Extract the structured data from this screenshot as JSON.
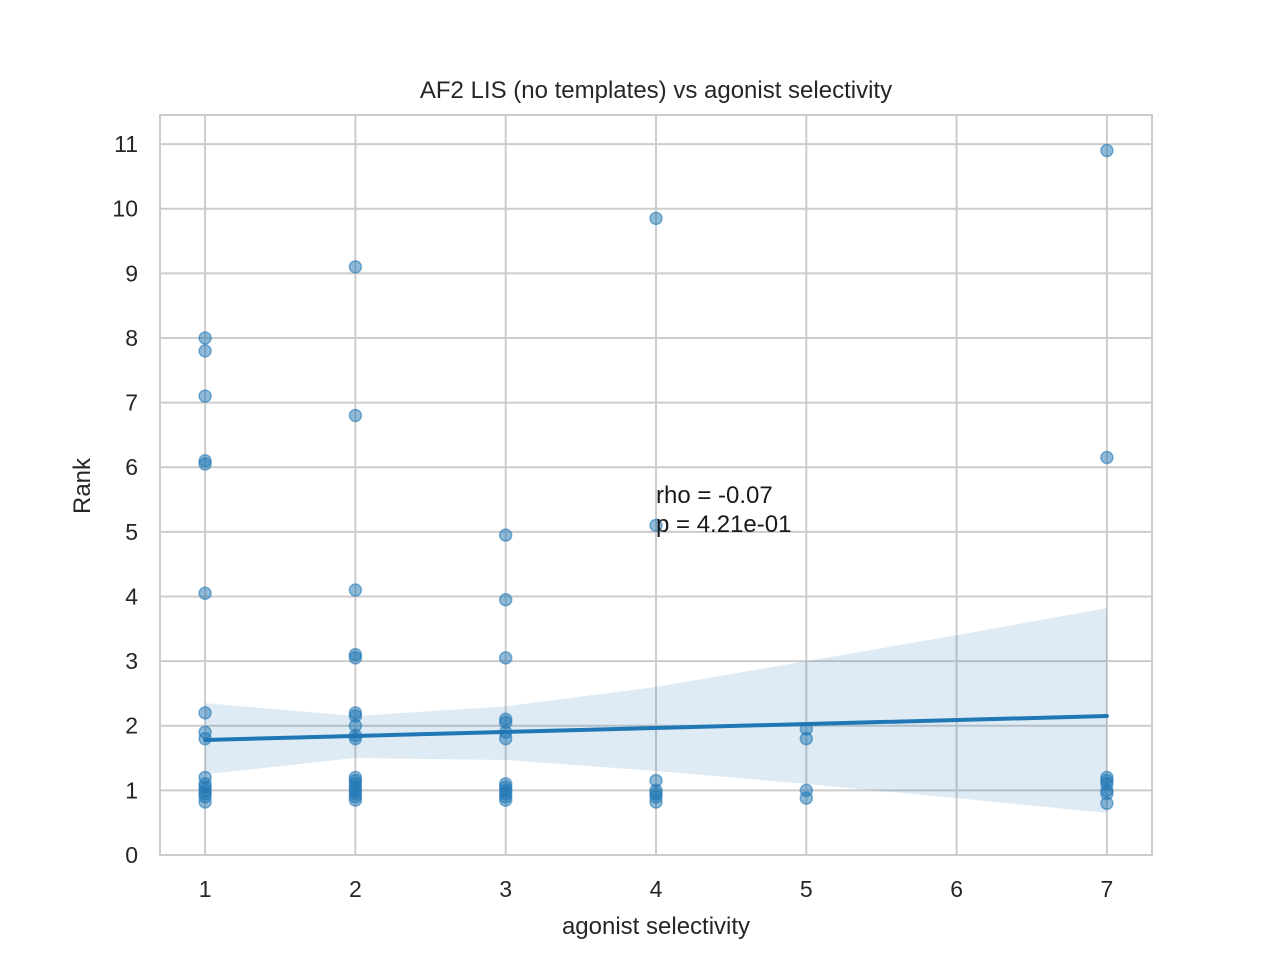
{
  "chart_data": {
    "type": "scatter",
    "title": "AF2 LIS (no templates) vs agonist selectivity",
    "xlabel": "agonist selectivity",
    "ylabel": "Rank",
    "xlim": [
      0.7,
      7.3
    ],
    "ylim": [
      0,
      11.45
    ],
    "x_ticks": [
      1,
      2,
      3,
      4,
      5,
      6,
      7
    ],
    "y_ticks": [
      0,
      1,
      2,
      3,
      4,
      5,
      6,
      7,
      8,
      9,
      10,
      11
    ],
    "grid": true,
    "point_color": "#1f77b4",
    "points": [
      {
        "x": 1,
        "y": 8.0
      },
      {
        "x": 1,
        "y": 7.8
      },
      {
        "x": 1,
        "y": 7.1
      },
      {
        "x": 1,
        "y": 6.1
      },
      {
        "x": 1,
        "y": 6.05
      },
      {
        "x": 1,
        "y": 4.05
      },
      {
        "x": 1,
        "y": 2.2
      },
      {
        "x": 1,
        "y": 1.9
      },
      {
        "x": 1,
        "y": 1.8
      },
      {
        "x": 1,
        "y": 1.2
      },
      {
        "x": 1,
        "y": 1.1
      },
      {
        "x": 1,
        "y": 1.05
      },
      {
        "x": 1,
        "y": 1.0
      },
      {
        "x": 1,
        "y": 0.95
      },
      {
        "x": 1,
        "y": 0.9
      },
      {
        "x": 1,
        "y": 0.82
      },
      {
        "x": 2,
        "y": 9.1
      },
      {
        "x": 2,
        "y": 6.8
      },
      {
        "x": 2,
        "y": 4.1
      },
      {
        "x": 2,
        "y": 3.1
      },
      {
        "x": 2,
        "y": 3.05
      },
      {
        "x": 2,
        "y": 2.2
      },
      {
        "x": 2,
        "y": 2.15
      },
      {
        "x": 2,
        "y": 2.0
      },
      {
        "x": 2,
        "y": 1.85
      },
      {
        "x": 2,
        "y": 1.8
      },
      {
        "x": 2,
        "y": 1.2
      },
      {
        "x": 2,
        "y": 1.15
      },
      {
        "x": 2,
        "y": 1.1
      },
      {
        "x": 2,
        "y": 1.05
      },
      {
        "x": 2,
        "y": 1.0
      },
      {
        "x": 2,
        "y": 0.95
      },
      {
        "x": 2,
        "y": 0.9
      },
      {
        "x": 2,
        "y": 0.85
      },
      {
        "x": 3,
        "y": 4.95
      },
      {
        "x": 3,
        "y": 3.95
      },
      {
        "x": 3,
        "y": 3.05
      },
      {
        "x": 3,
        "y": 2.1
      },
      {
        "x": 3,
        "y": 2.05
      },
      {
        "x": 3,
        "y": 1.9
      },
      {
        "x": 3,
        "y": 1.8
      },
      {
        "x": 3,
        "y": 1.1
      },
      {
        "x": 3,
        "y": 1.05
      },
      {
        "x": 3,
        "y": 1.0
      },
      {
        "x": 3,
        "y": 0.95
      },
      {
        "x": 3,
        "y": 0.9
      },
      {
        "x": 3,
        "y": 0.85
      },
      {
        "x": 4,
        "y": 9.85
      },
      {
        "x": 4,
        "y": 5.1
      },
      {
        "x": 4,
        "y": 1.15
      },
      {
        "x": 4,
        "y": 1.0
      },
      {
        "x": 4,
        "y": 0.95
      },
      {
        "x": 4,
        "y": 0.9
      },
      {
        "x": 4,
        "y": 0.82
      },
      {
        "x": 5,
        "y": 1.95
      },
      {
        "x": 5,
        "y": 1.8
      },
      {
        "x": 5,
        "y": 1.0
      },
      {
        "x": 5,
        "y": 0.88
      },
      {
        "x": 7,
        "y": 10.9
      },
      {
        "x": 7,
        "y": 6.15
      },
      {
        "x": 7,
        "y": 1.2
      },
      {
        "x": 7,
        "y": 1.15
      },
      {
        "x": 7,
        "y": 1.1
      },
      {
        "x": 7,
        "y": 1.0
      },
      {
        "x": 7,
        "y": 0.95
      },
      {
        "x": 7,
        "y": 0.8
      }
    ],
    "regression": {
      "x": [
        1,
        7
      ],
      "y": [
        1.78,
        2.15
      ],
      "ci_x": [
        1,
        2,
        3,
        4,
        5,
        6,
        7
      ],
      "ci_lower": [
        1.25,
        1.5,
        1.47,
        1.3,
        1.1,
        0.88,
        0.65
      ],
      "ci_upper": [
        2.35,
        2.15,
        2.3,
        2.6,
        3.0,
        3.4,
        3.82
      ],
      "line_color": "#1f77b4",
      "band_color": "#1f77b4"
    },
    "annotation": {
      "x": 4,
      "y": 5.0,
      "lines": [
        "rho = -0.07",
        "p = 4.21e-01"
      ]
    }
  }
}
